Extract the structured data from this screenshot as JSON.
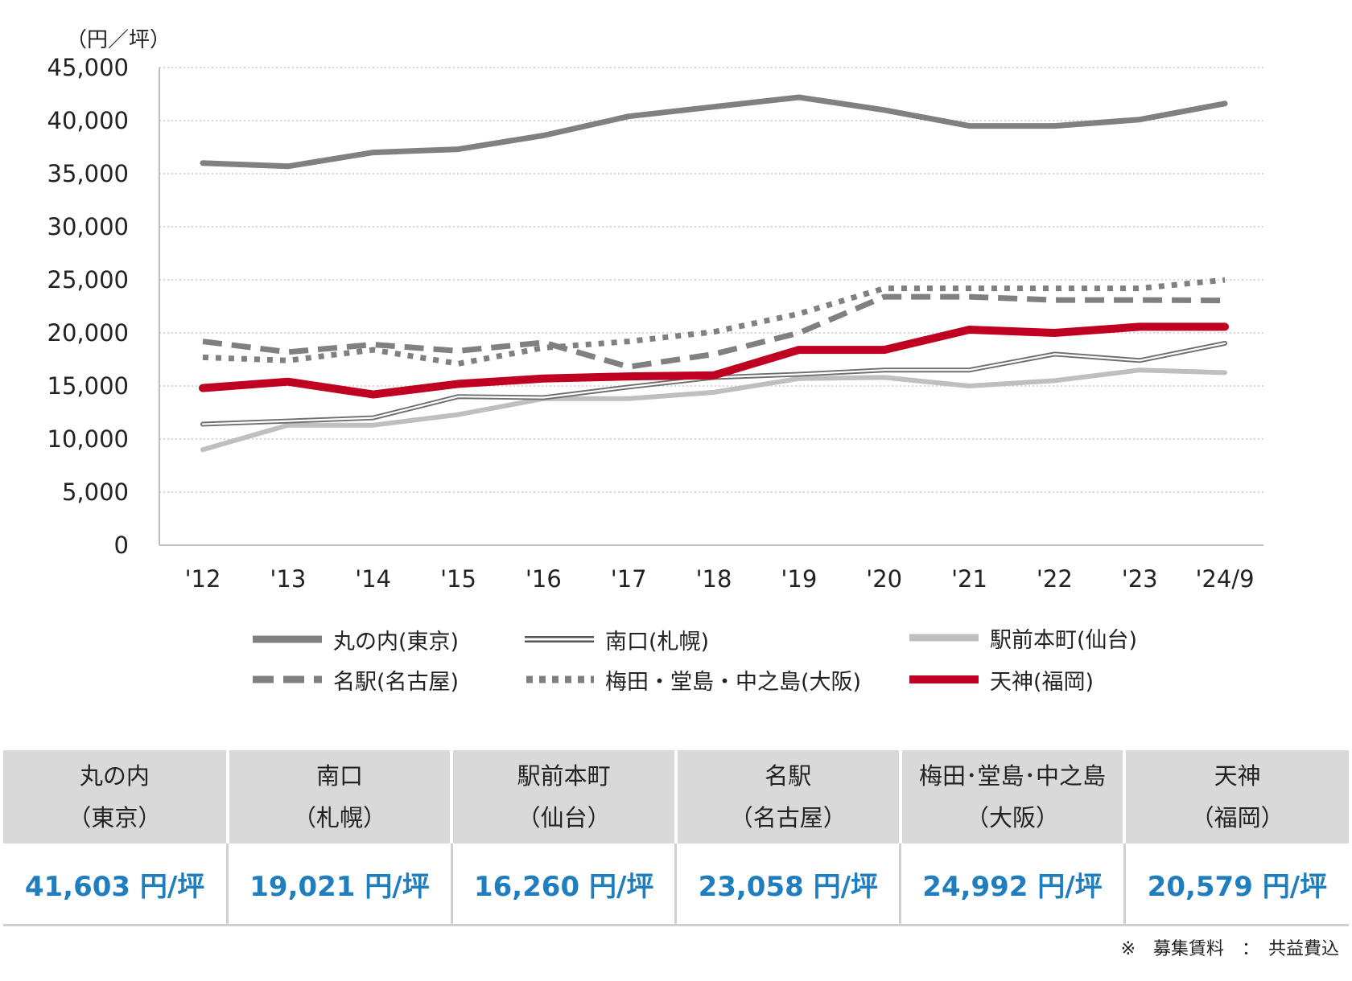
{
  "chart_data": {
    "type": "line",
    "unit_label": "（円／坪）",
    "categories": [
      "'12",
      "'13",
      "'14",
      "'15",
      "'16",
      "'17",
      "'18",
      "'19",
      "'20",
      "'21",
      "'22",
      "'23",
      "'24/9"
    ],
    "ylim": [
      0,
      45000
    ],
    "yticks": [
      0,
      5000,
      10000,
      15000,
      20000,
      25000,
      30000,
      35000,
      40000,
      45000
    ],
    "ytick_labels": [
      "0",
      "5,000",
      "10,000",
      "15,000",
      "20,000",
      "25,000",
      "30,000",
      "35,000",
      "40,000",
      "45,000"
    ],
    "grid": true,
    "series": [
      {
        "name": "丸の内(東京)",
        "style": "solid-thick",
        "color": "#808080",
        "values": [
          36000,
          35700,
          37000,
          37300,
          38600,
          40400,
          41300,
          42200,
          41000,
          39500,
          39500,
          40100,
          41603
        ]
      },
      {
        "name": "南口(札幌)",
        "style": "double",
        "color": "#7a7a7a",
        "values": [
          11400,
          11700,
          12000,
          14000,
          13900,
          14900,
          15800,
          16100,
          16500,
          16500,
          18000,
          17400,
          19021
        ]
      },
      {
        "name": "駅前本町(仙台)",
        "style": "solid-light",
        "color": "#bfbfbf",
        "values": [
          9000,
          11300,
          11300,
          12300,
          13800,
          13800,
          14400,
          15700,
          15800,
          15000,
          15500,
          16500,
          16260
        ]
      },
      {
        "name": "名駅(名古屋)",
        "style": "dashed",
        "color": "#808080",
        "values": [
          19200,
          18200,
          18900,
          18300,
          19100,
          16800,
          18000,
          20000,
          23400,
          23400,
          23100,
          23100,
          23058
        ]
      },
      {
        "name": "梅田・堂島・中之島(大阪)",
        "style": "dotted",
        "color": "#808080",
        "values": [
          17700,
          17400,
          18400,
          17100,
          18600,
          19200,
          20100,
          21800,
          24200,
          24200,
          24200,
          24200,
          24992
        ]
      },
      {
        "name": "天神(福岡)",
        "style": "solid-red",
        "color": "#c00020",
        "values": [
          14800,
          15400,
          14200,
          15200,
          15700,
          15900,
          16000,
          18400,
          18400,
          20300,
          20000,
          20579,
          20579
        ]
      }
    ]
  },
  "table": {
    "headers": [
      {
        "line1": "丸の内",
        "line2": "（東京）"
      },
      {
        "line1": "南口",
        "line2": "（札幌）"
      },
      {
        "line1": "駅前本町",
        "line2": "（仙台）"
      },
      {
        "line1": "名駅",
        "line2": "（名古屋）"
      },
      {
        "line1": "梅田･堂島･中之島",
        "line2": "（大阪）"
      },
      {
        "line1": "天神",
        "line2": "（福岡）"
      }
    ],
    "values": [
      "41,603 円/坪",
      "19,021 円/坪",
      "16,260 円/坪",
      "23,058 円/坪",
      "24,992 円/坪",
      "20,579 円/坪"
    ]
  },
  "footnote": "※　募集賃料　：　共益費込"
}
